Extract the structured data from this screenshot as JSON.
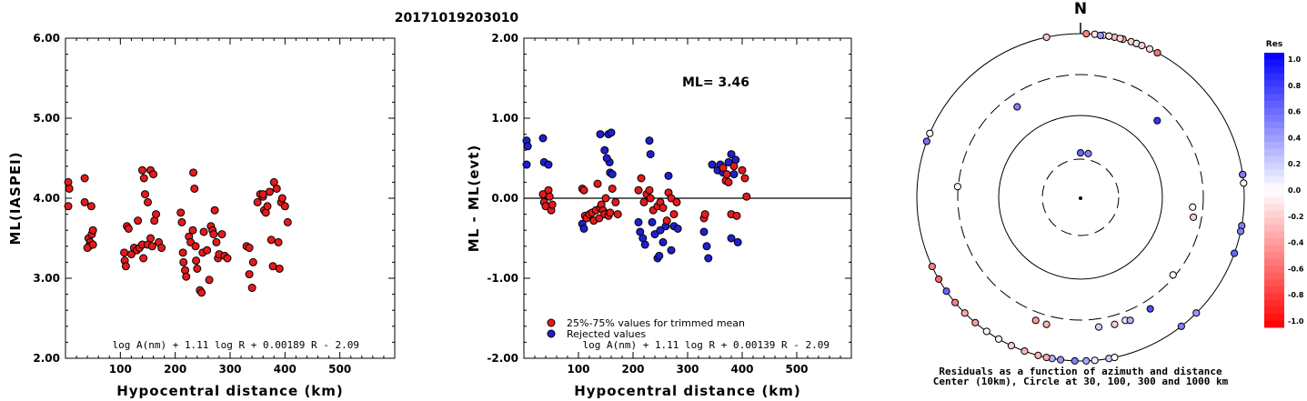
{
  "title": "20171019203010",
  "colors": {
    "used": "#e41a1c",
    "rejected": "#1f1fd1",
    "black": "#000000"
  },
  "chart_data": [
    {
      "type": "scatter",
      "ylabel": "ML(IASPEI)",
      "xlabel": "Hypocentral distance (km)",
      "xlim": [
        0,
        600
      ],
      "ylim": [
        2,
        6
      ],
      "xticks": [
        "100",
        "200",
        "300",
        "400",
        "500"
      ],
      "yticks": [
        "2.00",
        "3.00",
        "4.00",
        "5.00",
        "6.00"
      ],
      "formula": "log A(nm) + 1.11 log R + 0.00189 R - 2.09",
      "points": [
        [
          5,
          4.2
        ],
        [
          7,
          4.12
        ],
        [
          5,
          3.9
        ],
        [
          35,
          4.25
        ],
        [
          35,
          3.95
        ],
        [
          42,
          3.5
        ],
        [
          45,
          3.45
        ],
        [
          43,
          3.4
        ],
        [
          40,
          3.38
        ],
        [
          48,
          3.55
        ],
        [
          50,
          3.6
        ],
        [
          50,
          3.42
        ],
        [
          47,
          3.9
        ],
        [
          107,
          3.32
        ],
        [
          108,
          3.22
        ],
        [
          110,
          3.15
        ],
        [
          112,
          3.65
        ],
        [
          115,
          3.62
        ],
        [
          120,
          3.3
        ],
        [
          125,
          3.38
        ],
        [
          130,
          3.35
        ],
        [
          132,
          3.72
        ],
        [
          135,
          3.38
        ],
        [
          140,
          3.42
        ],
        [
          142,
          3.25
        ],
        [
          140,
          4.35
        ],
        [
          143,
          4.25
        ],
        [
          145,
          4.05
        ],
        [
          150,
          3.95
        ],
        [
          150,
          3.42
        ],
        [
          155,
          3.5
        ],
        [
          158,
          3.4
        ],
        [
          155,
          4.35
        ],
        [
          160,
          4.3
        ],
        [
          162,
          3.72
        ],
        [
          165,
          3.8
        ],
        [
          170,
          3.45
        ],
        [
          175,
          3.38
        ],
        [
          210,
          3.82
        ],
        [
          212,
          3.7
        ],
        [
          214,
          3.32
        ],
        [
          215,
          3.2
        ],
        [
          218,
          3.1
        ],
        [
          220,
          3.02
        ],
        [
          225,
          3.52
        ],
        [
          228,
          3.45
        ],
        [
          232,
          3.6
        ],
        [
          233,
          4.32
        ],
        [
          235,
          4.12
        ],
        [
          237,
          3.4
        ],
        [
          238,
          3.22
        ],
        [
          240,
          3.12
        ],
        [
          245,
          2.85
        ],
        [
          248,
          2.82
        ],
        [
          250,
          3.32
        ],
        [
          252,
          3.58
        ],
        [
          258,
          3.35
        ],
        [
          262,
          2.98
        ],
        [
          265,
          3.65
        ],
        [
          268,
          3.6
        ],
        [
          270,
          3.55
        ],
        [
          272,
          3.85
        ],
        [
          275,
          3.45
        ],
        [
          278,
          3.25
        ],
        [
          280,
          3.3
        ],
        [
          285,
          3.55
        ],
        [
          290,
          3.28
        ],
        [
          295,
          3.25
        ],
        [
          330,
          3.4
        ],
        [
          335,
          3.38
        ],
        [
          335,
          3.05
        ],
        [
          340,
          2.88
        ],
        [
          342,
          3.2
        ],
        [
          350,
          3.95
        ],
        [
          355,
          4.05
        ],
        [
          360,
          4.02
        ],
        [
          362,
          3.85
        ],
        [
          365,
          3.82
        ],
        [
          368,
          3.9
        ],
        [
          372,
          4.08
        ],
        [
          375,
          3.48
        ],
        [
          378,
          3.15
        ],
        [
          380,
          4.2
        ],
        [
          385,
          4.12
        ],
        [
          388,
          3.45
        ],
        [
          390,
          3.12
        ],
        [
          393,
          3.95
        ],
        [
          395,
          4.0
        ],
        [
          400,
          3.9
        ],
        [
          405,
          3.7
        ],
        [
          360,
          4.05
        ]
      ]
    },
    {
      "type": "scatter",
      "ylabel": "ML - ML(evt)",
      "xlabel": "Hypocentral distance (km)",
      "xlim": [
        0,
        600
      ],
      "ylim": [
        -2,
        2
      ],
      "xticks": [
        "100",
        "200",
        "300",
        "400",
        "500"
      ],
      "yticks": [
        "-2.00",
        "-1.00",
        "0.00",
        "1.00",
        "2.00"
      ],
      "annotation": "ML= 3.46",
      "formula": "log A(nm) + 1.11 log R + 0.00139 R - 2.09",
      "legend": [
        "25%-75% values for trimmed mean",
        "Rejected values"
      ],
      "used": [
        [
          35,
          0.05
        ],
        [
          37,
          -0.05
        ],
        [
          40,
          -0.1
        ],
        [
          45,
          0.1
        ],
        [
          47,
          0.02
        ],
        [
          50,
          -0.15
        ],
        [
          52,
          -0.08
        ],
        [
          107,
          0.12
        ],
        [
          110,
          0.1
        ],
        [
          112,
          -0.22
        ],
        [
          115,
          -0.25
        ],
        [
          120,
          -0.2
        ],
        [
          125,
          -0.18
        ],
        [
          128,
          -0.28
        ],
        [
          132,
          -0.15
        ],
        [
          135,
          0.18
        ],
        [
          138,
          -0.25
        ],
        [
          140,
          -0.12
        ],
        [
          142,
          -0.08
        ],
        [
          145,
          -0.15
        ],
        [
          148,
          -0.2
        ],
        [
          150,
          0.0
        ],
        [
          155,
          -0.22
        ],
        [
          158,
          -0.18
        ],
        [
          162,
          0.12
        ],
        [
          168,
          -0.05
        ],
        [
          172,
          -0.2
        ],
        [
          210,
          0.1
        ],
        [
          215,
          0.25
        ],
        [
          220,
          -0.05
        ],
        [
          225,
          0.05
        ],
        [
          230,
          0.1
        ],
        [
          232,
          0.0
        ],
        [
          237,
          -0.15
        ],
        [
          245,
          -0.1
        ],
        [
          250,
          -0.05
        ],
        [
          255,
          -0.12
        ],
        [
          262,
          -0.28
        ],
        [
          265,
          0.07
        ],
        [
          270,
          0.0
        ],
        [
          275,
          -0.2
        ],
        [
          280,
          -0.05
        ],
        [
          330,
          -0.25
        ],
        [
          332,
          -0.2
        ],
        [
          365,
          0.38
        ],
        [
          370,
          0.22
        ],
        [
          372,
          0.3
        ],
        [
          375,
          0.2
        ],
        [
          380,
          -0.2
        ],
        [
          385,
          0.4
        ],
        [
          390,
          -0.22
        ],
        [
          400,
          0.35
        ],
        [
          405,
          0.25
        ],
        [
          408,
          0.02
        ]
      ],
      "rejected": [
        [
          5,
          0.72
        ],
        [
          7,
          0.65
        ],
        [
          5,
          0.42
        ],
        [
          35,
          0.75
        ],
        [
          37,
          0.45
        ],
        [
          45,
          0.42
        ],
        [
          107,
          -0.32
        ],
        [
          110,
          -0.38
        ],
        [
          140,
          0.8
        ],
        [
          148,
          0.6
        ],
        [
          155,
          0.8
        ],
        [
          160,
          0.82
        ],
        [
          157,
          0.45
        ],
        [
          158,
          0.32
        ],
        [
          162,
          0.3
        ],
        [
          152,
          0.5
        ],
        [
          210,
          -0.3
        ],
        [
          213,
          -0.42
        ],
        [
          218,
          -0.5
        ],
        [
          222,
          -0.58
        ],
        [
          230,
          0.72
        ],
        [
          232,
          0.55
        ],
        [
          235,
          -0.3
        ],
        [
          240,
          -0.45
        ],
        [
          245,
          -0.75
        ],
        [
          248,
          -0.72
        ],
        [
          250,
          -0.4
        ],
        [
          255,
          -0.55
        ],
        [
          260,
          -0.35
        ],
        [
          265,
          0.28
        ],
        [
          270,
          -0.65
        ],
        [
          275,
          -0.35
        ],
        [
          282,
          -0.38
        ],
        [
          330,
          -0.42
        ],
        [
          335,
          -0.6
        ],
        [
          338,
          -0.75
        ],
        [
          345,
          0.42
        ],
        [
          355,
          0.35
        ],
        [
          360,
          0.42
        ],
        [
          365,
          0.32
        ],
        [
          375,
          0.45
        ],
        [
          380,
          0.55
        ],
        [
          380,
          -0.5
        ],
        [
          385,
          0.3
        ],
        [
          388,
          0.48
        ],
        [
          392,
          -0.55
        ]
      ]
    },
    {
      "type": "scatter",
      "label_north": "N",
      "caption_line1": "Residuals as a function of azimuth and distance",
      "caption_line2": "Center (10km), Circle at 30, 100, 300 and 1000 km",
      "colorbar_title": "Res",
      "colorbar_ticks": [
        "1.0",
        "0.8",
        "0.6",
        "0.4",
        "0.2",
        "0.0",
        "-0.2",
        "-0.4",
        "-0.6",
        "-0.8",
        "-1.0"
      ],
      "stations": [
        [
          2,
          1080,
          -0.5
        ],
        [
          -12,
          1080,
          -0.2
        ],
        [
          5,
          1050,
          -0.1
        ],
        [
          8,
          1060,
          0.05
        ],
        [
          10,
          1020,
          0.3
        ],
        [
          15,
          1080,
          -0.4
        ],
        [
          12,
          1100,
          -0.25
        ],
        [
          20,
          1120,
          -0.5
        ],
        [
          18,
          1060,
          -0.2
        ],
        [
          7,
          990,
          0.4
        ],
        [
          10,
          1000,
          -0.1
        ],
        [
          15,
          1010,
          -0.3
        ],
        [
          20,
          1030,
          0.1
        ],
        [
          25,
          1040,
          -0.15
        ],
        [
          28,
          1100,
          -0.55
        ],
        [
          14,
          1050,
          -0.15
        ],
        [
          22,
          1000,
          -0.2
        ],
        [
          290,
          1100,
          0.55
        ],
        [
          293,
          1020,
          0.0
        ],
        [
          85,
          1040,
          0.0
        ],
        [
          82,
          1030,
          0.0
        ],
        [
          82,
          1150,
          0.5
        ],
        [
          100,
          1050,
          0.5
        ],
        [
          102,
          1100,
          0.5
        ],
        [
          110,
          1080,
          0.6
        ],
        [
          95,
          250,
          0.0
        ],
        [
          100,
          260,
          -0.2
        ],
        [
          130,
          290,
          0.0
        ],
        [
          135,
          1060,
          0.4
        ],
        [
          142,
          1040,
          0.5
        ],
        [
          148,
          450,
          0.7
        ],
        [
          160,
          440,
          0.1
        ],
        [
          158,
          470,
          0.3
        ],
        [
          165,
          450,
          -0.2
        ],
        [
          172,
          440,
          0.2
        ],
        [
          175,
          1040,
          0.05
        ],
        [
          170,
          1050,
          0.2
        ],
        [
          178,
          1070,
          0.35
        ],
        [
          182,
          1060,
          0.5
        ],
        [
          187,
          1070,
          0.4
        ],
        [
          190,
          1050,
          0.3
        ],
        [
          168,
          1070,
          0.0
        ],
        [
          195,
          1010,
          -0.3
        ],
        [
          192,
          1050,
          -0.35
        ],
        [
          200,
          1000,
          -0.3
        ],
        [
          205,
          1000,
          -0.2
        ],
        [
          210,
          1000,
          0.05
        ],
        [
          215,
          1020,
          0.0
        ],
        [
          200,
          440,
          -0.4
        ],
        [
          195,
          450,
          -0.3
        ],
        [
          220,
          1080,
          -0.4
        ],
        [
          225,
          1120,
          -0.35
        ],
        [
          230,
          1090,
          -0.5
        ],
        [
          235,
          1080,
          0.6
        ],
        [
          240,
          1110,
          -0.6
        ],
        [
          245,
          1100,
          -0.5
        ],
        [
          275,
          310,
          0.0
        ],
        [
          325,
          240,
          0.5
        ],
        [
          45,
          230,
          0.8
        ],
        [
          0,
          40,
          0.6
        ],
        [
          10,
          40,
          0.5
        ]
      ]
    }
  ]
}
